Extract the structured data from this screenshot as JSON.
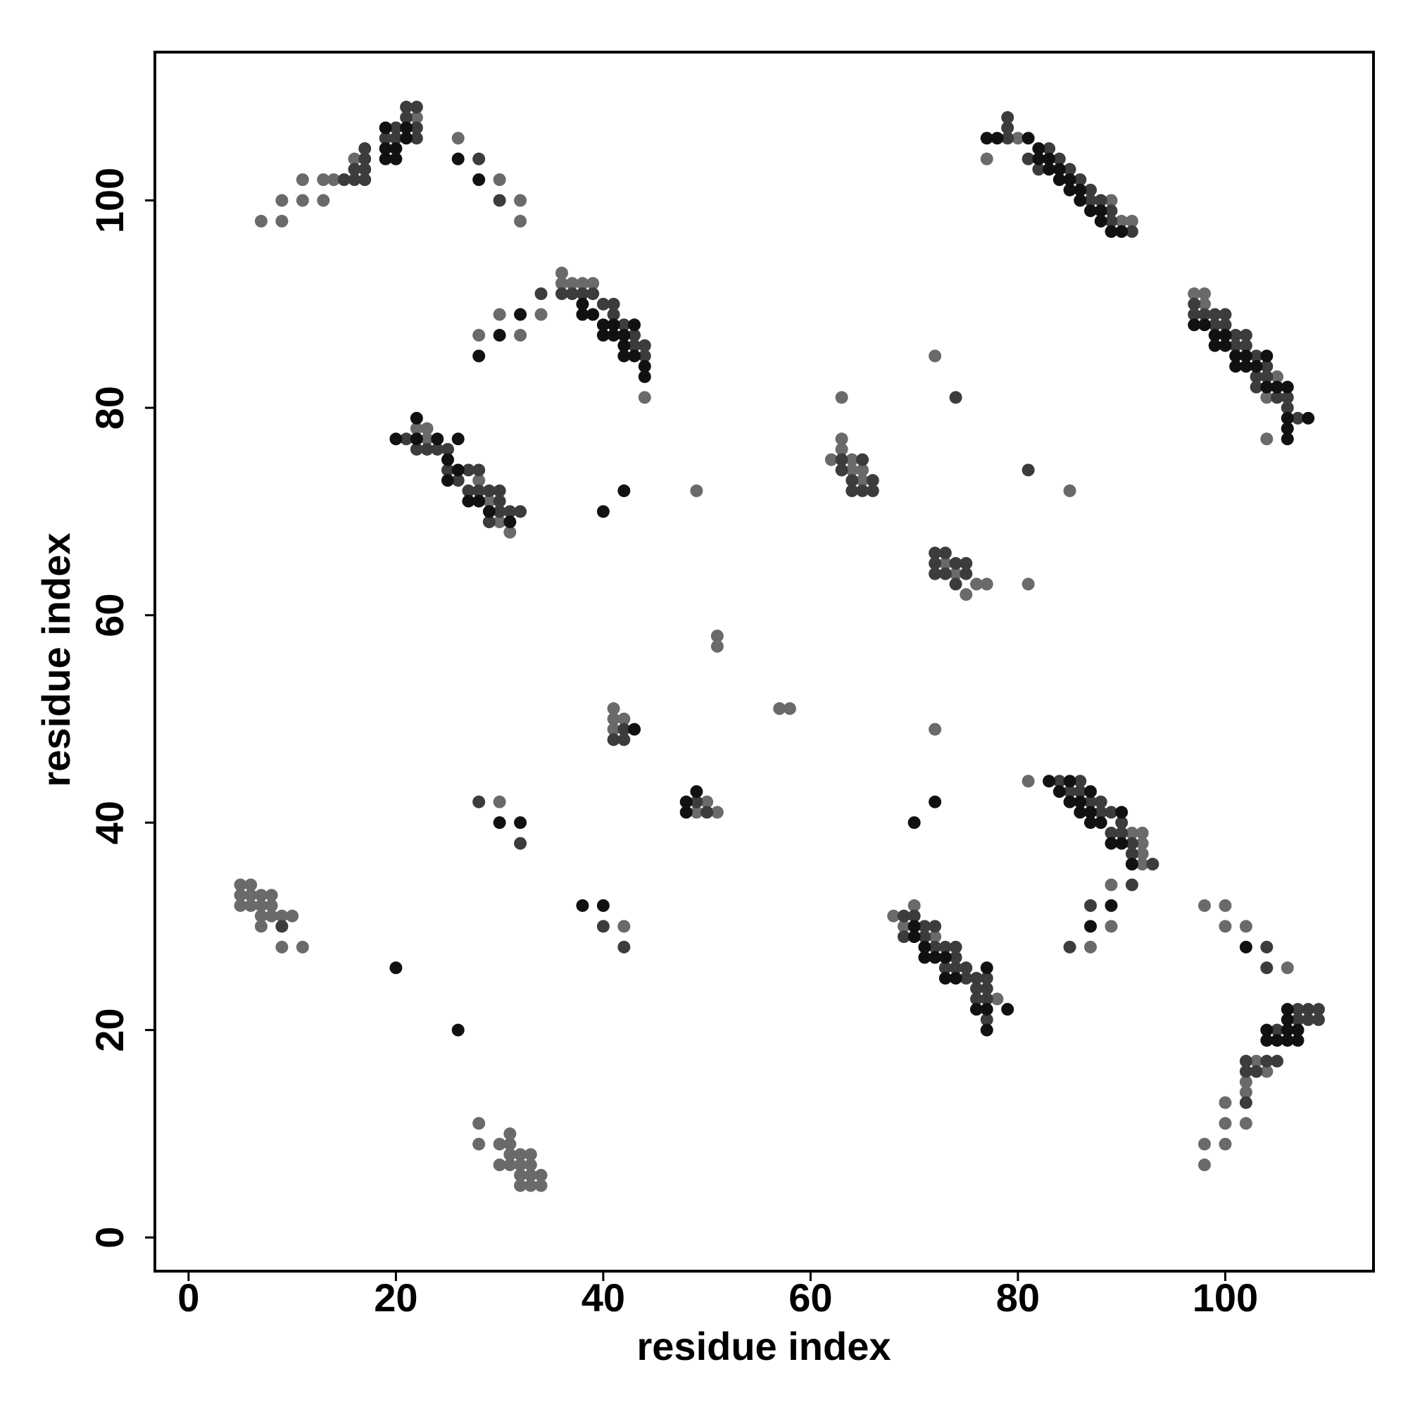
{
  "chart_data": {
    "type": "scatter",
    "xlabel": "residue index",
    "ylabel": "residue index",
    "xlim": [
      -3.25,
      114.3
    ],
    "ylim": [
      -3.25,
      114.3
    ],
    "xticks": [
      0,
      20,
      40,
      60,
      80,
      100
    ],
    "yticks": [
      0,
      20,
      40,
      60,
      80,
      100
    ],
    "series": [
      {
        "color": "#6a6a6a",
        "x": [
          7,
          9,
          9,
          11,
          11,
          13,
          13,
          14,
          16,
          22,
          26,
          30,
          32,
          32,
          36,
          36,
          37,
          38,
          39,
          28,
          30,
          32,
          44,
          34,
          22,
          23,
          23,
          28,
          29,
          30,
          31,
          49,
          41,
          41,
          42,
          41,
          51,
          51,
          57,
          58,
          50,
          51,
          49,
          30,
          42,
          5,
          6,
          5,
          6,
          7,
          8,
          5,
          6,
          7,
          8,
          7,
          8,
          9,
          10,
          7,
          9,
          11,
          28,
          28,
          30,
          31,
          30,
          31,
          32,
          33,
          32,
          33,
          34,
          32,
          33,
          34,
          33,
          31,
          31,
          32,
          63,
          62,
          63,
          63,
          64,
          65,
          64,
          65,
          72,
          85,
          81,
          73,
          74,
          75,
          76,
          77,
          72,
          77,
          80,
          89,
          90,
          91,
          97,
          98,
          98,
          104,
          104,
          105,
          81,
          91,
          92,
          92,
          92,
          91,
          92,
          89,
          87,
          89,
          68,
          69,
          70,
          72,
          76,
          78,
          98,
          100,
          100,
          102,
          106,
          98,
          98,
          100,
          100,
          100,
          102,
          102,
          102,
          104,
          103
        ],
        "y": [
          98,
          98,
          100,
          100,
          102,
          100,
          102,
          102,
          104,
          108,
          106,
          102,
          100,
          98,
          93,
          92,
          92,
          92,
          92,
          87,
          89,
          87,
          81,
          89,
          78,
          78,
          77,
          73,
          71,
          69,
          68,
          72,
          51,
          50,
          50,
          49,
          58,
          57,
          51,
          51,
          42,
          41,
          41,
          42,
          30,
          34,
          34,
          33,
          33,
          33,
          33,
          32,
          32,
          32,
          32,
          31,
          31,
          31,
          31,
          30,
          28,
          28,
          11,
          9,
          9,
          10,
          7,
          8,
          8,
          8,
          7,
          7,
          6,
          5,
          5,
          5,
          6,
          7,
          9,
          6,
          81,
          75,
          77,
          76,
          74,
          74,
          75,
          73,
          85,
          72,
          63,
          65,
          64,
          62,
          63,
          63,
          49,
          104,
          106,
          100,
          98,
          98,
          91,
          91,
          90,
          81,
          77,
          83,
          44,
          39,
          39,
          38,
          37,
          36,
          36,
          34,
          28,
          30,
          31,
          30,
          32,
          29,
          22,
          23,
          32,
          32,
          30,
          30,
          26,
          9,
          7,
          13,
          11,
          9,
          11,
          14,
          15,
          16,
          17
        ]
      },
      {
        "color": "#3c3c3c",
        "x": [
          15,
          16,
          16,
          17,
          17,
          17,
          17,
          19,
          20,
          21,
          21,
          22,
          22,
          22,
          20,
          28,
          30,
          34,
          36,
          37,
          38,
          39,
          40,
          41,
          41,
          42,
          43,
          43,
          44,
          44,
          21,
          22,
          23,
          24,
          25,
          25,
          26,
          27,
          28,
          28,
          29,
          30,
          30,
          30,
          31,
          32,
          29,
          27,
          42,
          41,
          42,
          49,
          50,
          28,
          32,
          40,
          42,
          9,
          63,
          64,
          64,
          65,
          66,
          66,
          65,
          63,
          74,
          81,
          72,
          73,
          72,
          72,
          73,
          74,
          75,
          74,
          75,
          79,
          79,
          79,
          81,
          82,
          83,
          84,
          85,
          86,
          87,
          87,
          88,
          89,
          89,
          91,
          97,
          97,
          98,
          99,
          100,
          99,
          100,
          101,
          102,
          101,
          102,
          103,
          104,
          103,
          104,
          105,
          106,
          106,
          107,
          103,
          84,
          85,
          86,
          86,
          87,
          88,
          88,
          89,
          90,
          89,
          90,
          91,
          91,
          93,
          91,
          85,
          87,
          69,
          69,
          70,
          71,
          71,
          72,
          72,
          73,
          74,
          74,
          74,
          73,
          75,
          76,
          76,
          77,
          76,
          77,
          77,
          77,
          75,
          104,
          104,
          102,
          102,
          103,
          104,
          105,
          102,
          107,
          108,
          109,
          107,
          108,
          109,
          105
        ],
        "y": [
          102,
          102,
          103,
          102,
          103,
          104,
          105,
          106,
          106,
          108,
          109,
          109,
          107,
          106,
          107,
          104,
          100,
          91,
          91,
          91,
          91,
          91,
          90,
          89,
          90,
          88,
          87,
          86,
          86,
          85,
          77,
          76,
          76,
          76,
          76,
          74,
          73,
          74,
          74,
          72,
          72,
          72,
          71,
          70,
          70,
          70,
          69,
          72,
          49,
          48,
          48,
          42,
          41,
          42,
          38,
          30,
          28,
          30,
          75,
          73,
          72,
          75,
          73,
          72,
          72,
          74,
          81,
          74,
          66,
          66,
          65,
          64,
          64,
          65,
          65,
          63,
          64,
          108,
          107,
          106,
          104,
          103,
          105,
          104,
          103,
          102,
          101,
          100,
          100,
          98,
          99,
          97,
          90,
          89,
          89,
          89,
          89,
          88,
          88,
          87,
          87,
          86,
          86,
          85,
          84,
          83,
          83,
          81,
          80,
          81,
          79,
          82,
          44,
          43,
          44,
          43,
          42,
          42,
          41,
          41,
          40,
          39,
          39,
          38,
          37,
          36,
          34,
          28,
          32,
          31,
          29,
          31,
          30,
          29,
          30,
          28,
          28,
          28,
          27,
          26,
          26,
          25,
          25,
          24,
          24,
          23,
          23,
          21,
          25,
          26,
          28,
          26,
          16,
          17,
          16,
          17,
          17,
          13,
          22,
          22,
          22,
          21,
          21,
          21,
          20
        ]
      },
      {
        "color": "#111111",
        "x": [
          19,
          19,
          19,
          20,
          20,
          21,
          21,
          26,
          28,
          28,
          30,
          32,
          38,
          38,
          39,
          40,
          40,
          41,
          41,
          42,
          42,
          43,
          43,
          44,
          44,
          42,
          20,
          22,
          22,
          24,
          26,
          25,
          25,
          26,
          27,
          28,
          29,
          31,
          40,
          42,
          43,
          48,
          49,
          48,
          30,
          32,
          38,
          40,
          20,
          26,
          70,
          72,
          77,
          78,
          81,
          82,
          82,
          83,
          83,
          84,
          84,
          85,
          85,
          86,
          86,
          87,
          88,
          88,
          89,
          90,
          97,
          98,
          99,
          100,
          99,
          100,
          101,
          102,
          101,
          102,
          103,
          104,
          104,
          105,
          106,
          106,
          106,
          106,
          108,
          83,
          85,
          84,
          85,
          86,
          87,
          86,
          87,
          87,
          88,
          89,
          90,
          90,
          91,
          87,
          89,
          70,
          70,
          71,
          71,
          72,
          73,
          73,
          74,
          76,
          77,
          77,
          77,
          79,
          102,
          104,
          104,
          105,
          106,
          106,
          107,
          106,
          107,
          106
        ],
        "y": [
          104,
          105,
          107,
          104,
          105,
          107,
          106,
          104,
          102,
          85,
          87,
          89,
          90,
          89,
          89,
          88,
          87,
          87,
          88,
          86,
          85,
          88,
          85,
          84,
          83,
          87,
          77,
          79,
          77,
          77,
          77,
          75,
          73,
          74,
          71,
          71,
          70,
          69,
          70,
          72,
          49,
          42,
          43,
          41,
          40,
          40,
          32,
          32,
          26,
          20,
          40,
          42,
          106,
          106,
          106,
          105,
          104,
          104,
          103,
          103,
          102,
          101,
          102,
          101,
          100,
          99,
          99,
          98,
          97,
          97,
          88,
          88,
          87,
          87,
          86,
          86,
          85,
          85,
          84,
          84,
          84,
          85,
          82,
          82,
          82,
          79,
          78,
          77,
          79,
          44,
          44,
          43,
          42,
          42,
          43,
          41,
          41,
          40,
          40,
          38,
          38,
          41,
          36,
          30,
          32,
          30,
          29,
          28,
          27,
          27,
          27,
          25,
          25,
          22,
          22,
          26,
          20,
          22,
          28,
          20,
          19,
          19,
          20,
          19,
          19,
          21,
          20,
          22
        ]
      }
    ]
  }
}
